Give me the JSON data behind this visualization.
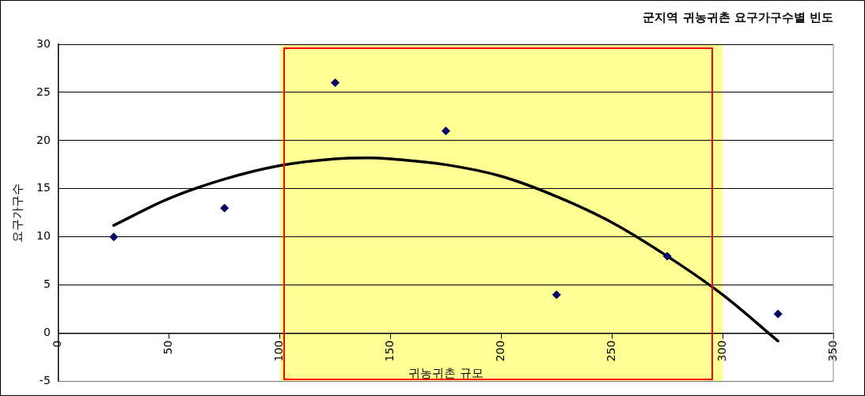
{
  "chart_data": {
    "type": "scatter",
    "title": "군지역 귀농귀촌 요구가구수별 빈도",
    "xlabel": "귀농귀촌 규모",
    "ylabel": "요구가구수",
    "x": [
      25,
      75,
      125,
      175,
      225,
      275,
      325
    ],
    "series": [
      {
        "type": "scatter",
        "color": "#000066",
        "marker": "diamond",
        "values": [
          10,
          13,
          26,
          21,
          4,
          8,
          2
        ]
      },
      {
        "type": "line",
        "color": "#000000",
        "marker": "none",
        "x": [
          25,
          50,
          75,
          100,
          125,
          140,
          150,
          175,
          200,
          225,
          250,
          275,
          300,
          325
        ],
        "values": [
          11.2,
          14,
          16,
          17.4,
          18.1,
          18.2,
          18.1,
          17.5,
          16.3,
          14.2,
          11.5,
          8,
          4,
          -0.8
        ]
      }
    ],
    "xlim": [
      0,
      350
    ],
    "xticks": [
      0,
      50,
      100,
      150,
      200,
      250,
      300,
      350
    ],
    "ylim": [
      -5,
      30
    ],
    "yticks": [
      -5,
      0,
      5,
      10,
      15,
      20,
      25,
      30
    ],
    "bands": [
      {
        "axis": "x",
        "from": 100,
        "to": 300,
        "color": "#ffff00"
      }
    ],
    "grid": "y",
    "legend": false
  }
}
